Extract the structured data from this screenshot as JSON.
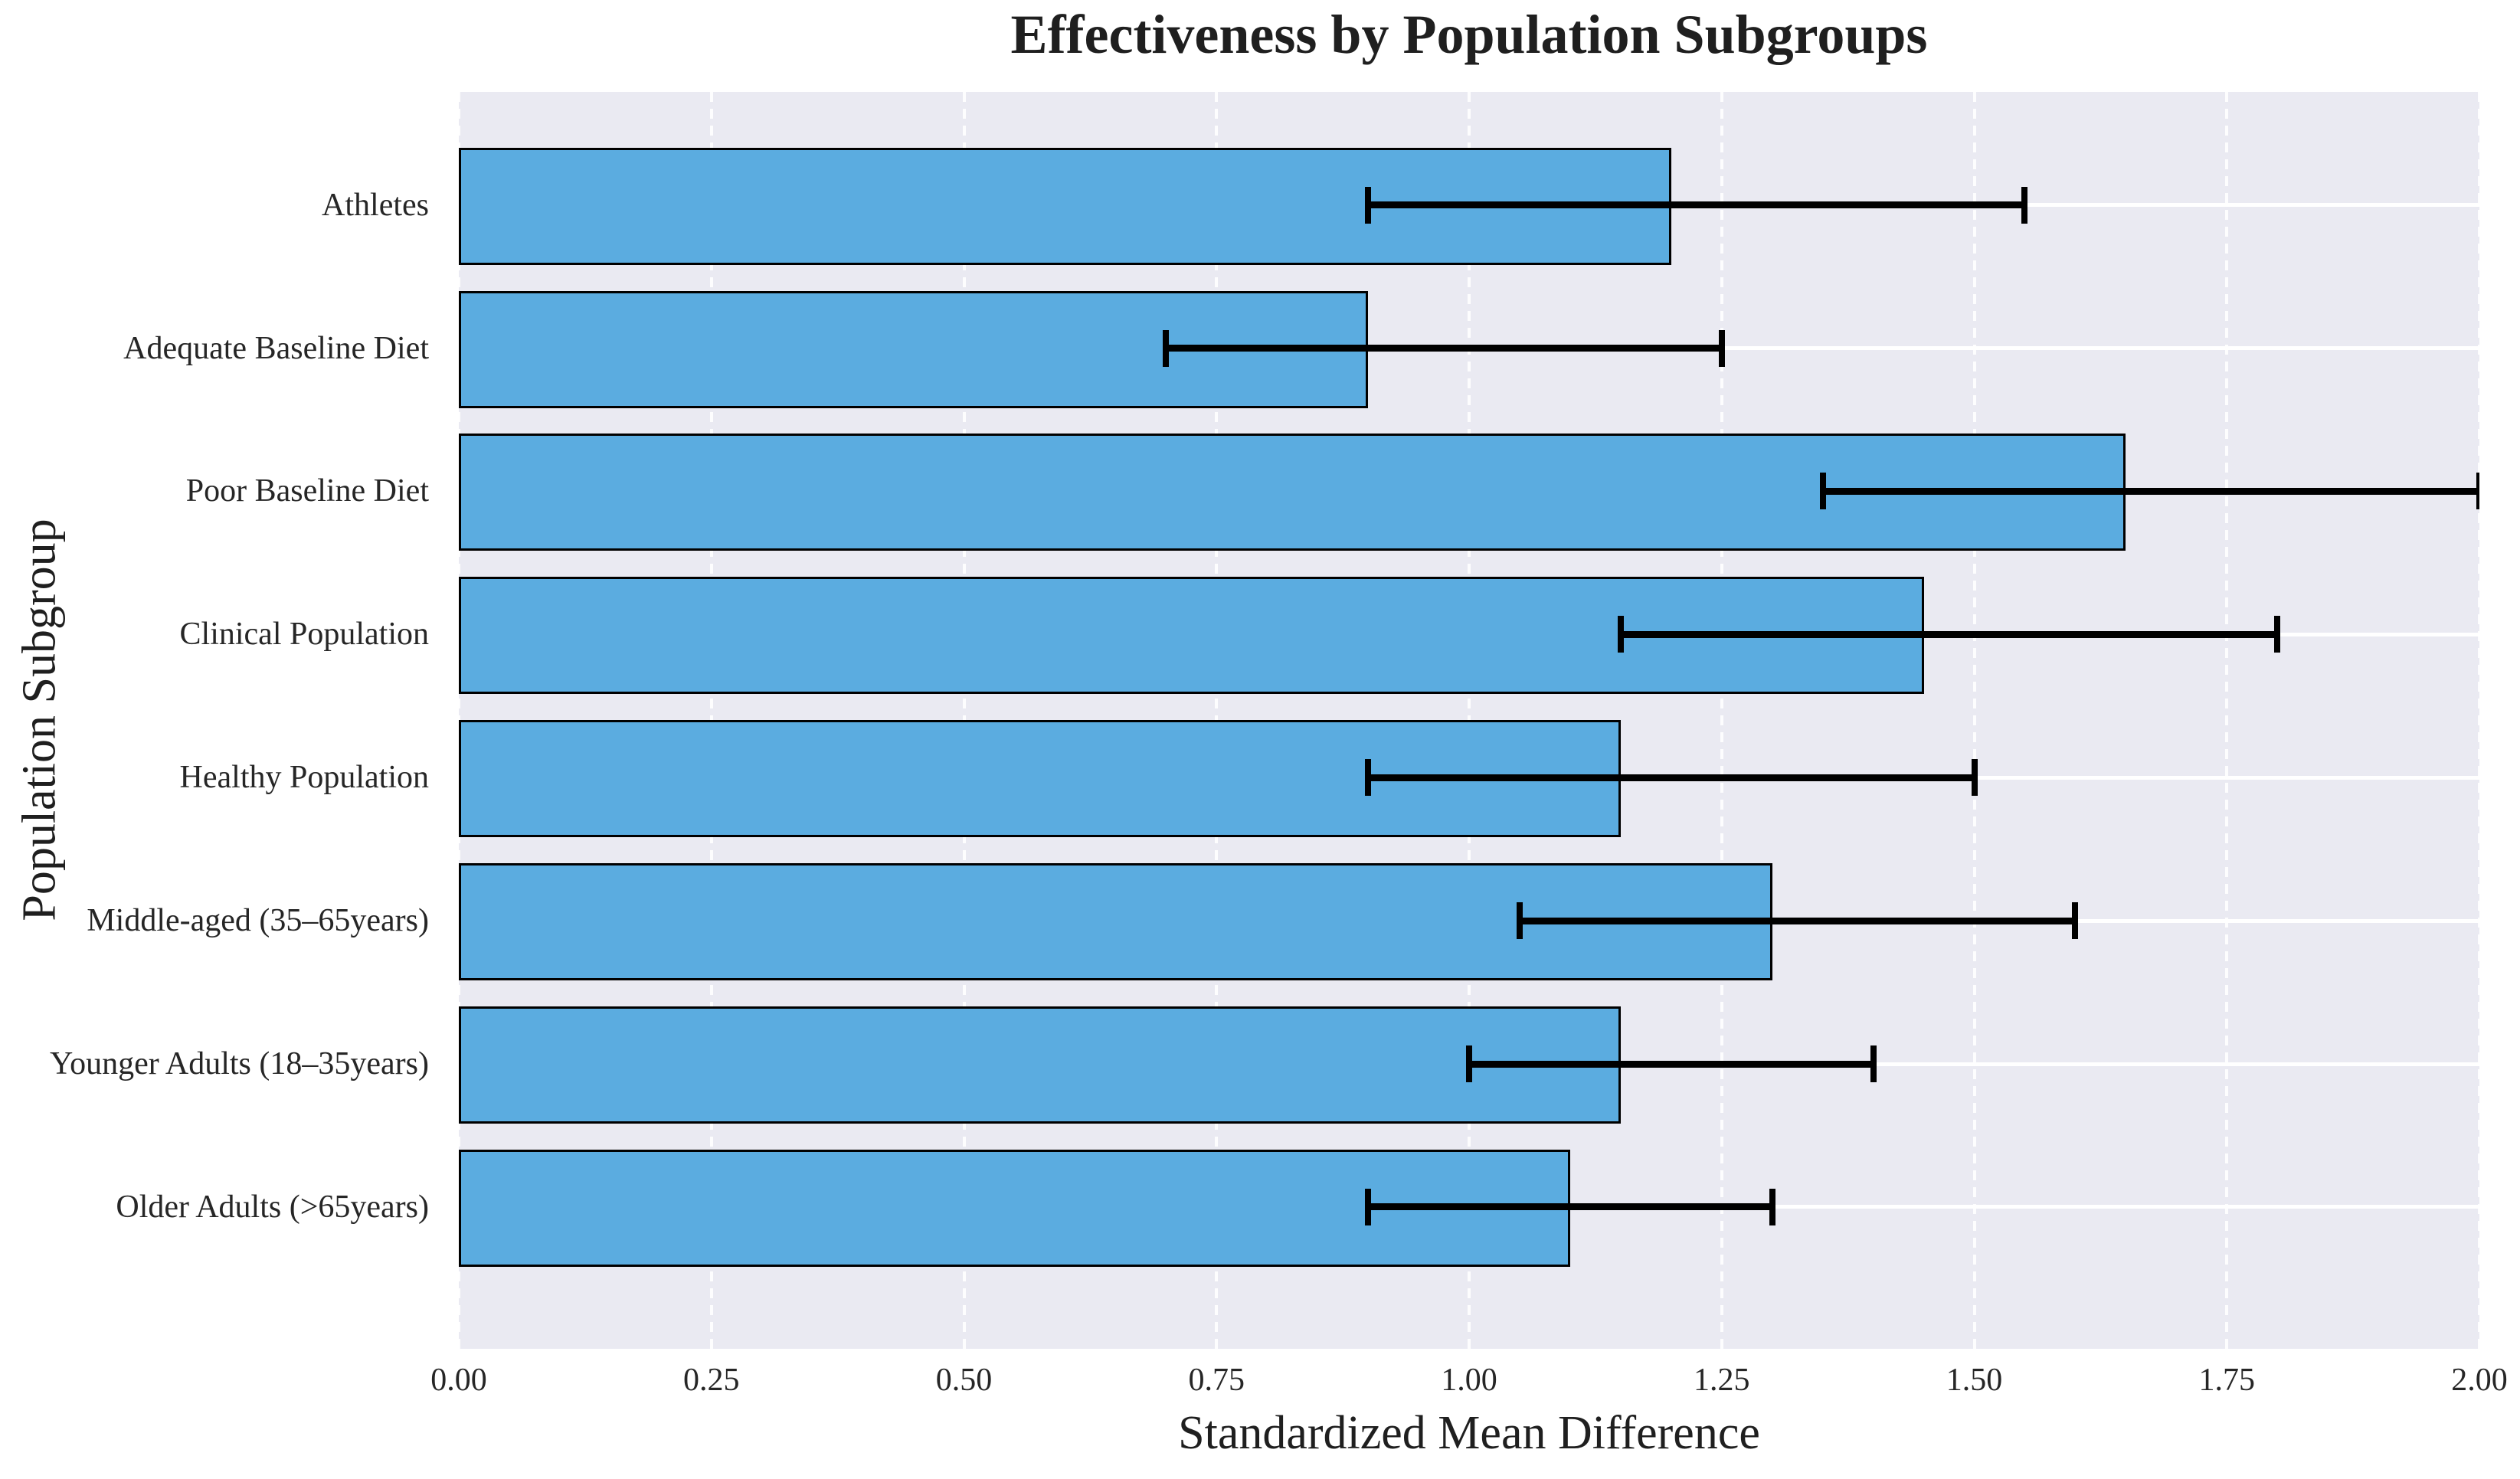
{
  "chart_data": {
    "type": "bar",
    "orientation": "horizontal",
    "title": "Effectiveness by Population Subgroups",
    "xlabel": "Standardized Mean Difference",
    "ylabel": "Population Subgroup",
    "categories": [
      "Athletes",
      "Adequate Baseline Diet",
      "Poor Baseline Diet",
      "Clinical Population",
      "Healthy Population",
      "Middle-aged (35–65years)",
      "Younger Adults (18–35years)",
      "Older Adults (>65years)"
    ],
    "values": [
      1.2,
      0.9,
      1.65,
      1.45,
      1.15,
      1.3,
      1.15,
      1.1
    ],
    "error_low": [
      0.9,
      0.7,
      1.35,
      1.15,
      0.9,
      1.05,
      1.0,
      0.9
    ],
    "error_high": [
      1.55,
      1.25,
      2.0,
      1.8,
      1.5,
      1.6,
      1.4,
      1.3
    ],
    "xlim": [
      0.0,
      2.0
    ],
    "xtick_step": 0.25,
    "xtick_labels": [
      "0.00",
      "0.25",
      "0.50",
      "0.75",
      "1.00",
      "1.25",
      "1.50",
      "1.75",
      "2.00"
    ],
    "grid": true,
    "legend": "none",
    "colors": {
      "bar_fill": "#5BACE0",
      "bar_edge": "#000000",
      "error_bar": "#000000",
      "plot_background": "#EAEAF2",
      "gridline": "#FFFFFF",
      "text": "#262626"
    }
  }
}
